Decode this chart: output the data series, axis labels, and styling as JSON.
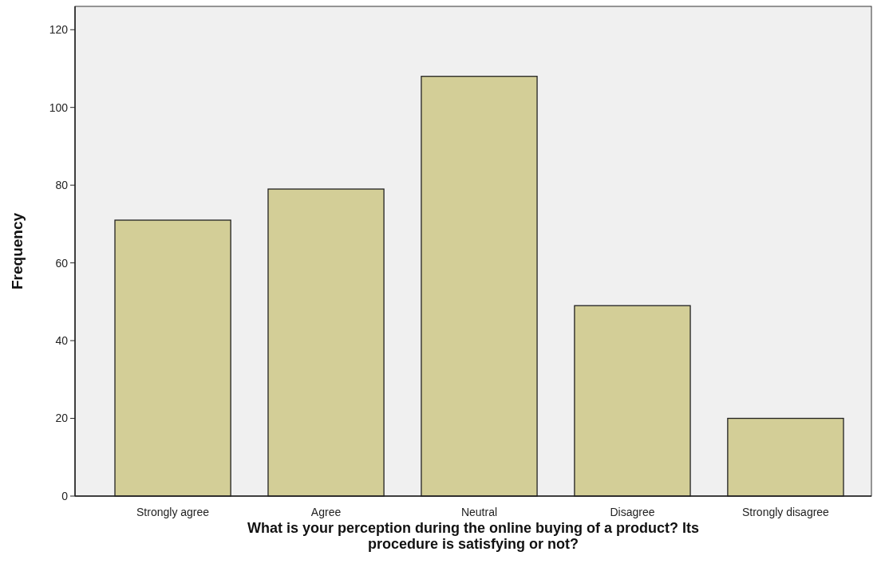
{
  "chart_data": {
    "type": "bar",
    "xlabel": "What is your perception during the online buying of a product? Its procedure is satisfying or not?",
    "ylabel": "Frequency",
    "categories": [
      "Strongly agree",
      "Agree",
      "Neutral",
      "Disagree",
      "Strongly disagree"
    ],
    "values": [
      71,
      79,
      108,
      49,
      20
    ],
    "color": "#d3ce97",
    "ylim": [
      0,
      126
    ],
    "yticks": [
      0,
      20,
      40,
      60,
      80,
      100,
      120
    ],
    "grid": false
  }
}
